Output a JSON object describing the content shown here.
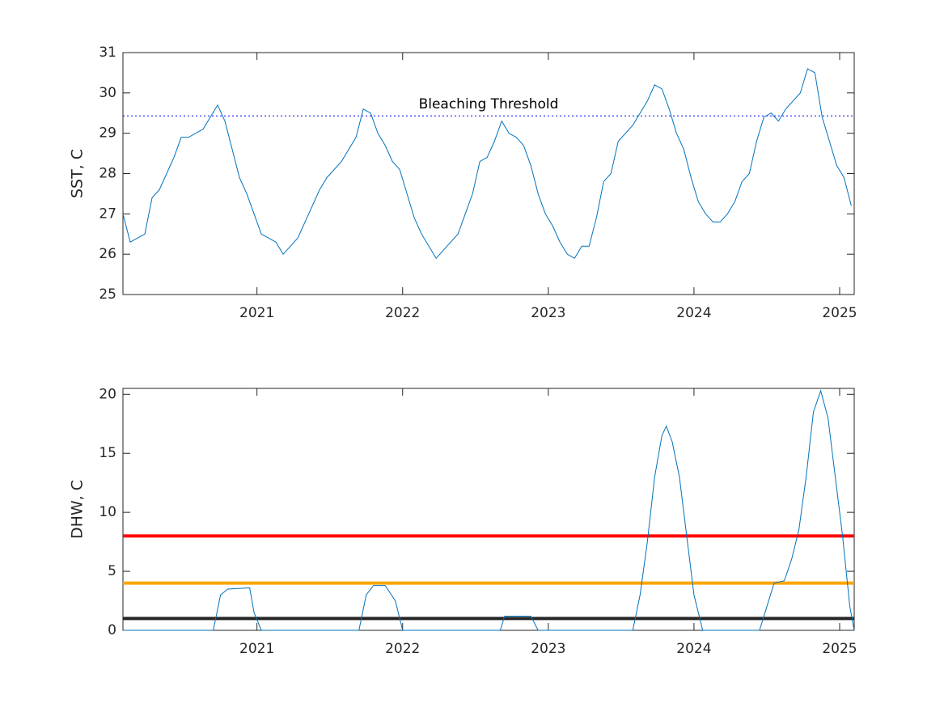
{
  "chart_data": [
    {
      "type": "line",
      "ylabel": "SST, C",
      "color": "#0072bd",
      "x": [
        2020.08,
        2020.13,
        2020.18,
        2020.23,
        2020.28,
        2020.33,
        2020.38,
        2020.43,
        2020.48,
        2020.53,
        2020.58,
        2020.63,
        2020.68,
        2020.73,
        2020.78,
        2020.83,
        2020.88,
        2020.93,
        2020.98,
        2021.03,
        2021.08,
        2021.13,
        2021.18,
        2021.23,
        2021.28,
        2021.33,
        2021.38,
        2021.43,
        2021.48,
        2021.53,
        2021.58,
        2021.63,
        2021.68,
        2021.73,
        2021.78,
        2021.83,
        2021.88,
        2021.93,
        2021.98,
        2022.03,
        2022.08,
        2022.13,
        2022.18,
        2022.23,
        2022.28,
        2022.33,
        2022.38,
        2022.43,
        2022.48,
        2022.53,
        2022.58,
        2022.63,
        2022.68,
        2022.73,
        2022.78,
        2022.83,
        2022.88,
        2022.93,
        2022.98,
        2023.03,
        2023.08,
        2023.13,
        2023.18,
        2023.23,
        2023.28,
        2023.33,
        2023.38,
        2023.43,
        2023.48,
        2023.53,
        2023.58,
        2023.63,
        2023.68,
        2023.73,
        2023.78,
        2023.83,
        2023.88,
        2023.93,
        2023.98,
        2024.03,
        2024.08,
        2024.13,
        2024.18,
        2024.23,
        2024.28,
        2024.33,
        2024.38,
        2024.43,
        2024.48,
        2024.53,
        2024.58,
        2024.63,
        2024.68,
        2024.73,
        2024.78,
        2024.83,
        2024.88,
        2024.93,
        2024.98,
        2025.03,
        2025.08
      ],
      "values": [
        27.0,
        26.3,
        26.4,
        26.5,
        27.4,
        27.6,
        28.0,
        28.4,
        28.9,
        28.9,
        29.0,
        29.1,
        29.4,
        29.7,
        29.3,
        28.6,
        27.9,
        27.5,
        27.0,
        26.5,
        26.4,
        26.3,
        26.0,
        26.2,
        26.4,
        26.8,
        27.2,
        27.6,
        27.9,
        28.1,
        28.3,
        28.6,
        28.9,
        29.6,
        29.5,
        29.0,
        28.7,
        28.3,
        28.1,
        27.5,
        26.9,
        26.5,
        26.2,
        25.9,
        26.1,
        26.3,
        26.5,
        27.0,
        27.5,
        28.3,
        28.4,
        28.8,
        29.3,
        29.0,
        28.9,
        28.7,
        28.2,
        27.5,
        27.0,
        26.7,
        26.3,
        26.0,
        25.9,
        26.2,
        26.2,
        26.9,
        27.8,
        28.0,
        28.8,
        29.0,
        29.2,
        29.5,
        29.8,
        30.2,
        30.1,
        29.6,
        29.0,
        28.6,
        27.9,
        27.3,
        27.0,
        26.8,
        26.8,
        27.0,
        27.3,
        27.8,
        28.0,
        28.8,
        29.4,
        29.5,
        29.3,
        29.6,
        29.8,
        30.0,
        30.6,
        30.5,
        29.4,
        28.8,
        28.2,
        27.9,
        27.2
      ],
      "xlim": [
        2020.08,
        2025.1
      ],
      "xticks": [
        2021,
        2022,
        2023,
        2024,
        2025
      ],
      "ylim": [
        25,
        31
      ],
      "yticks": [
        25,
        26,
        27,
        28,
        29,
        30,
        31
      ],
      "hlines": [
        {
          "value": 29.43,
          "color": "#0000ff",
          "style": "dotted",
          "label": "Bleaching Threshold"
        }
      ]
    },
    {
      "type": "line",
      "ylabel": "DHW, C",
      "color": "#0072bd",
      "x": [
        2020.08,
        2020.7,
        2020.75,
        2020.8,
        2020.95,
        2020.98,
        2021.03,
        2021.7,
        2021.75,
        2021.8,
        2021.88,
        2021.95,
        2022.0,
        2022.67,
        2022.7,
        2022.88,
        2022.93,
        2023.58,
        2023.63,
        2023.68,
        2023.73,
        2023.78,
        2023.81,
        2023.85,
        2023.9,
        2023.95,
        2024.0,
        2024.06,
        2024.45,
        2024.5,
        2024.55,
        2024.62,
        2024.67,
        2024.72,
        2024.77,
        2024.82,
        2024.87,
        2024.92,
        2024.97,
        2025.02,
        2025.07,
        2025.1
      ],
      "values": [
        0,
        0,
        3.0,
        3.5,
        3.6,
        1.5,
        0,
        0,
        3.0,
        3.8,
        3.8,
        2.5,
        0,
        0,
        1.2,
        1.2,
        0,
        0,
        3.0,
        7.5,
        13.0,
        16.5,
        17.3,
        16.0,
        13.0,
        8.0,
        3.0,
        0,
        0,
        2.0,
        4.0,
        4.2,
        6.0,
        8.5,
        13.0,
        18.5,
        20.3,
        18.0,
        13.0,
        8.0,
        2.0,
        0
      ],
      "xlim": [
        2020.08,
        2025.1
      ],
      "xticks": [
        2021,
        2022,
        2023,
        2024,
        2025
      ],
      "ylim": [
        0,
        20.5
      ],
      "yticks": [
        0,
        5,
        10,
        15,
        20
      ],
      "hlines": [
        {
          "value": 8,
          "color": "#ff0000",
          "style": "solid"
        },
        {
          "value": 4,
          "color": "#ffa500",
          "style": "solid"
        },
        {
          "value": 1,
          "color": "#262626",
          "style": "solid"
        }
      ]
    }
  ]
}
